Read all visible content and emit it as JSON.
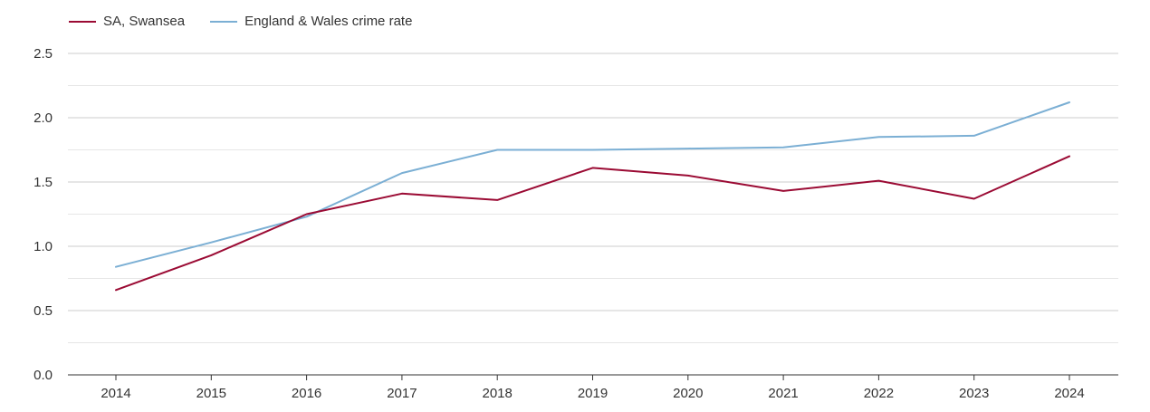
{
  "chart_data": {
    "type": "line",
    "title": "",
    "xlabel": "",
    "ylabel": "",
    "categories": [
      "2014",
      "2015",
      "2016",
      "2017",
      "2018",
      "2019",
      "2020",
      "2021",
      "2022",
      "2023",
      "2024"
    ],
    "ylim": [
      0,
      2.5
    ],
    "yticks": [
      "0.0",
      "0.5",
      "1.0",
      "1.5",
      "2.0",
      "2.5"
    ],
    "grid": true,
    "legend_position": "top-left",
    "series": [
      {
        "name": "SA, Swansea",
        "color": "#9b0b34",
        "values": [
          0.66,
          0.93,
          1.25,
          1.41,
          1.36,
          1.61,
          1.55,
          1.43,
          1.51,
          1.37,
          1.7
        ]
      },
      {
        "name": "England & Wales crime rate",
        "color": "#7bafd4",
        "values": [
          0.84,
          1.03,
          1.23,
          1.57,
          1.75,
          1.75,
          1.76,
          1.77,
          1.85,
          1.86,
          2.12
        ]
      }
    ]
  }
}
